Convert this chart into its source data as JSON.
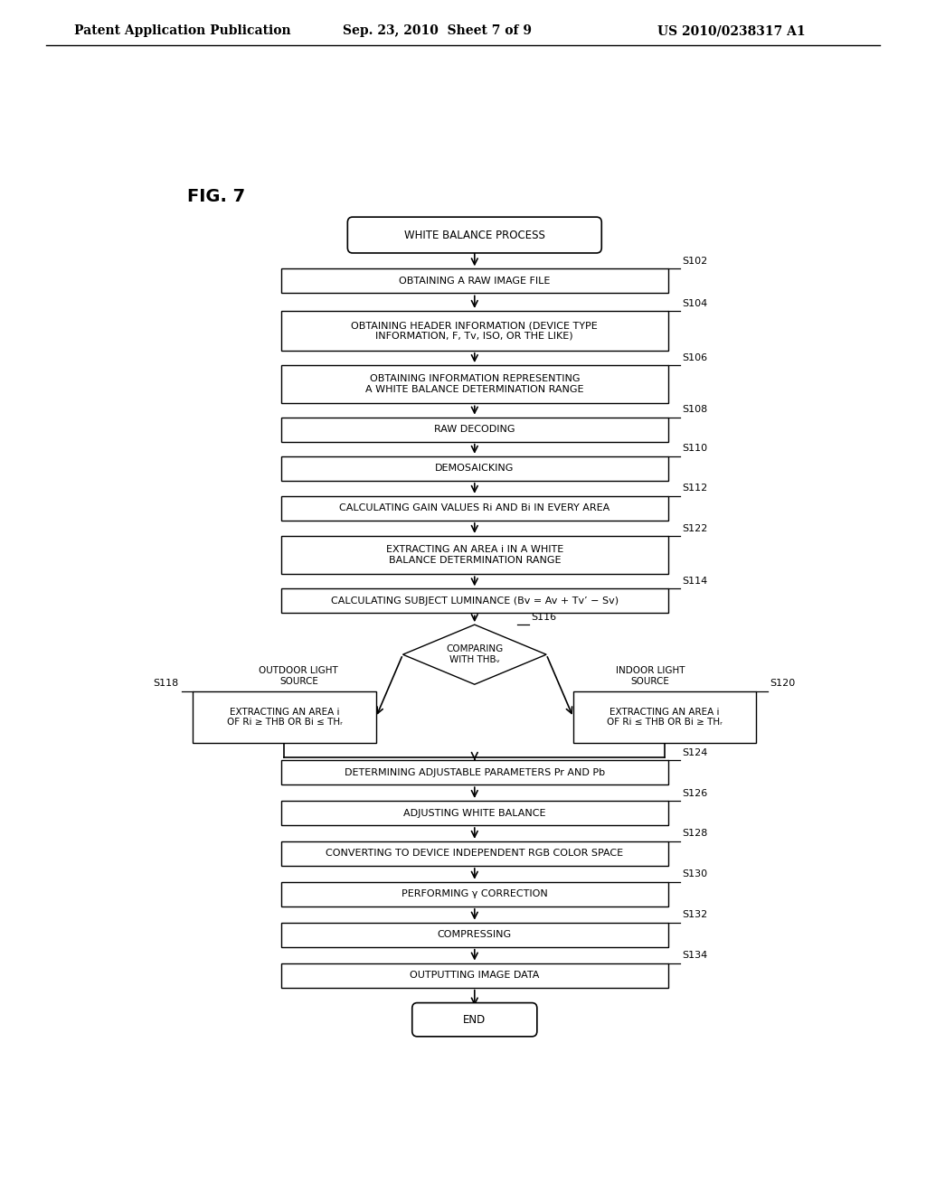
{
  "title_header": "Patent Application Publication",
  "date_header": "Sep. 23, 2010  Sheet 7 of 9",
  "patent_header": "US 2010/0238317 A1",
  "fig_label": "FIG. 7",
  "bg_color": "#ffffff",
  "box_color": "#ffffff",
  "box_edge_color": "#000000",
  "text_color": "#000000",
  "outdoor_label": "OUTDOOR LIGHT\nSOURCE",
  "indoor_label": "INDOOR LIGHT\nSOURCE"
}
